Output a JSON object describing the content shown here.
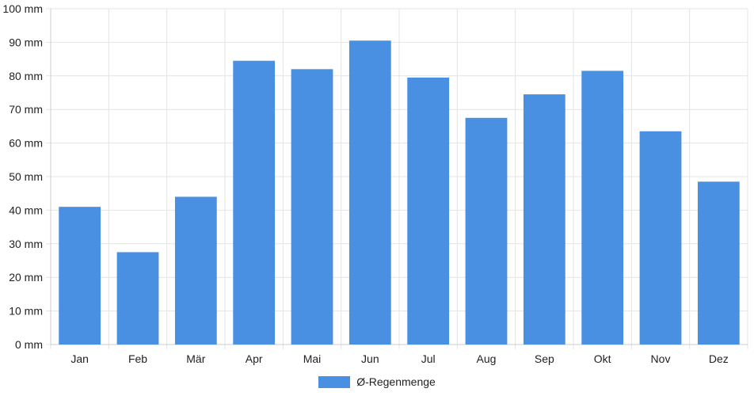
{
  "chart_data": {
    "type": "bar",
    "title": "",
    "xlabel": "",
    "ylabel": "",
    "y_unit": "mm",
    "ylim": [
      0,
      100
    ],
    "y_ticks": [
      0,
      10,
      20,
      30,
      40,
      50,
      60,
      70,
      80,
      90,
      100
    ],
    "categories": [
      "Jan",
      "Feb",
      "Mär",
      "Apr",
      "Mai",
      "Jun",
      "Jul",
      "Aug",
      "Sep",
      "Okt",
      "Nov",
      "Dez"
    ],
    "series": [
      {
        "name": "Ø-Regenmenge",
        "color": "#4a90e2",
        "values": [
          41,
          27.5,
          44,
          84.5,
          82,
          90.5,
          79.5,
          67.5,
          74.5,
          81.5,
          63.5,
          48.5
        ]
      }
    ],
    "grid": true,
    "legend_position": "bottom-center"
  }
}
